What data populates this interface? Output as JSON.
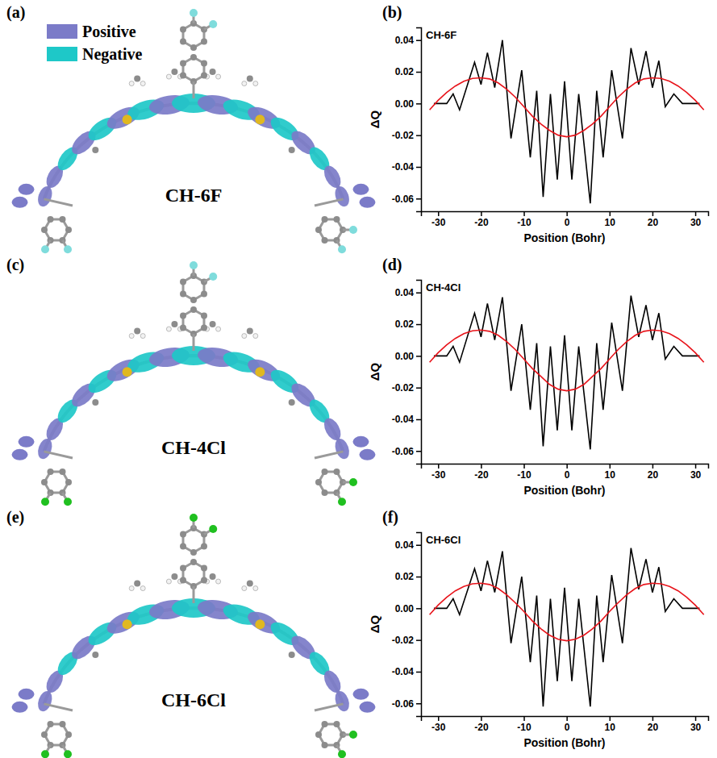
{
  "chart_data": [
    {
      "type": "line",
      "panel_label": "(b)",
      "title": "CH-6F",
      "x_label": "Position (Bohr)",
      "y_label": "ΔQ",
      "xlim": [
        -34,
        33
      ],
      "xticks": [
        -30,
        -20,
        -10,
        0,
        10,
        20,
        30
      ],
      "ylim": [
        -0.068,
        0.048
      ],
      "yticks": [
        -0.06,
        -0.04,
        -0.02,
        {
          "value": 0,
          "label": "0.00"
        },
        0.02,
        0.04
      ],
      "grid": false,
      "series": [
        {
          "color": "#000000",
          "line_style": "solid",
          "x": [
            -31,
            -28,
            -26.5,
            -25,
            -21.5,
            -20,
            -18.5,
            -16.8,
            -15,
            -13,
            -10.5,
            -8.5,
            -7,
            -5.5,
            -3.8,
            -2.2,
            -0.5,
            1.2,
            2.8,
            5.5,
            7,
            8.5,
            10.5,
            13,
            15,
            16.8,
            18.5,
            20,
            21.5,
            23,
            25,
            27,
            31
          ],
          "values": [
            0,
            0,
            0.006,
            -0.004,
            0.026,
            0.012,
            0.032,
            0.01,
            0.04,
            -0.022,
            0.021,
            -0.034,
            0.008,
            -0.059,
            0.006,
            -0.048,
            0.014,
            -0.048,
            0.006,
            -0.063,
            0.008,
            -0.034,
            0.021,
            -0.022,
            0.035,
            0.012,
            0.033,
            0.01,
            0.027,
            -0.002,
            0.006,
            0,
            0
          ]
        },
        {
          "color": "#e8141b",
          "line_style": "solid",
          "x": [
            -32,
            -30,
            -28,
            -26,
            -24,
            -22,
            -20,
            -18,
            -16,
            -14,
            -12,
            -10,
            -8,
            -6,
            -4,
            -2,
            0,
            2,
            4,
            6,
            8,
            10,
            12,
            14,
            16,
            18,
            20,
            22,
            24,
            26,
            28,
            30,
            32
          ],
          "values": [
            -0.004,
            0.002,
            0.007,
            0.011,
            0.014,
            0.0158,
            0.0162,
            0.0155,
            0.013,
            0.009,
            0.004,
            -0.002,
            -0.008,
            -0.013,
            -0.017,
            -0.02,
            -0.021,
            -0.02,
            -0.017,
            -0.013,
            -0.008,
            -0.002,
            0.004,
            0.009,
            0.013,
            0.0155,
            0.0162,
            0.0158,
            0.014,
            0.011,
            0.007,
            0.002,
            -0.004
          ]
        }
      ]
    },
    {
      "type": "line",
      "panel_label": "(d)",
      "title": "CH-4Cl",
      "x_label": "Position (Bohr)",
      "y_label": "ΔQ",
      "xlim": [
        -34,
        33
      ],
      "xticks": [
        -30,
        -20,
        -10,
        0,
        10,
        20,
        30
      ],
      "ylim": [
        -0.068,
        0.048
      ],
      "yticks": [
        -0.06,
        -0.04,
        -0.02,
        {
          "value": 0,
          "label": "0.00"
        },
        0.02,
        0.04
      ],
      "grid": false,
      "series": [
        {
          "color": "#000000",
          "line_style": "solid",
          "x": [
            -31,
            -28,
            -26.5,
            -25,
            -21.5,
            -20,
            -18.5,
            -16.8,
            -15,
            -13,
            -10.5,
            -8.5,
            -7,
            -5.5,
            -3.8,
            -2.2,
            -0.5,
            1.2,
            2.8,
            5.5,
            7,
            8.5,
            10.5,
            13,
            15,
            16.8,
            18.5,
            20,
            21.5,
            23,
            25,
            27,
            31
          ],
          "values": [
            0,
            0,
            0.006,
            -0.004,
            0.027,
            0.012,
            0.033,
            0.01,
            0.037,
            -0.022,
            0.02,
            -0.034,
            0.008,
            -0.057,
            0.006,
            -0.047,
            0.013,
            -0.047,
            0.006,
            -0.059,
            0.008,
            -0.034,
            0.021,
            -0.022,
            0.038,
            0.012,
            0.032,
            0.01,
            0.027,
            -0.002,
            0.006,
            0,
            0
          ]
        },
        {
          "color": "#e8141b",
          "line_style": "solid",
          "x": [
            -32,
            -30,
            -28,
            -26,
            -24,
            -22,
            -20,
            -18,
            -16,
            -14,
            -12,
            -10,
            -8,
            -6,
            -4,
            -2,
            0,
            2,
            4,
            6,
            8,
            10,
            12,
            14,
            16,
            18,
            20,
            22,
            24,
            26,
            28,
            30,
            32
          ],
          "values": [
            -0.004,
            0.002,
            0.007,
            0.011,
            0.014,
            0.0158,
            0.0163,
            0.0155,
            0.013,
            0.009,
            0.004,
            -0.002,
            -0.008,
            -0.013,
            -0.018,
            -0.021,
            -0.022,
            -0.021,
            -0.018,
            -0.013,
            -0.008,
            -0.002,
            0.004,
            0.009,
            0.013,
            0.0155,
            0.0163,
            0.0158,
            0.014,
            0.011,
            0.007,
            0.002,
            -0.004
          ]
        }
      ]
    },
    {
      "type": "line",
      "panel_label": "(f)",
      "title": "CH-6Cl",
      "x_label": "Position (Bohr)",
      "y_label": "ΔQ",
      "xlim": [
        -34,
        33
      ],
      "xticks": [
        -30,
        -20,
        -10,
        0,
        10,
        20,
        30
      ],
      "ylim": [
        -0.068,
        0.048
      ],
      "yticks": [
        -0.06,
        -0.04,
        -0.02,
        {
          "value": 0,
          "label": "0.00"
        },
        0.02,
        0.04
      ],
      "grid": false,
      "series": [
        {
          "color": "#000000",
          "line_style": "solid",
          "x": [
            -31,
            -28,
            -26.5,
            -25,
            -21.5,
            -20,
            -18.5,
            -16.8,
            -15,
            -13,
            -10.5,
            -8.5,
            -7,
            -5.5,
            -3.8,
            -2.2,
            -0.5,
            1.2,
            2.8,
            5.5,
            7,
            8.5,
            10.5,
            13,
            15,
            16.8,
            18.5,
            20,
            21.5,
            23,
            25,
            27,
            31
          ],
          "values": [
            0,
            0,
            0.006,
            -0.004,
            0.025,
            0.011,
            0.03,
            0.01,
            0.036,
            -0.022,
            0.02,
            -0.034,
            0.008,
            -0.062,
            0.006,
            -0.046,
            0.013,
            -0.046,
            0.006,
            -0.062,
            0.008,
            -0.034,
            0.021,
            -0.022,
            0.038,
            0.012,
            0.031,
            0.01,
            0.026,
            -0.002,
            0.006,
            0,
            0
          ]
        },
        {
          "color": "#e8141b",
          "line_style": "solid",
          "x": [
            -32,
            -30,
            -28,
            -26,
            -24,
            -22,
            -20,
            -18,
            -16,
            -14,
            -12,
            -10,
            -8,
            -6,
            -4,
            -2,
            0,
            2,
            4,
            6,
            8,
            10,
            12,
            14,
            16,
            18,
            20,
            22,
            24,
            26,
            28,
            30,
            32
          ],
          "values": [
            -0.004,
            0.002,
            0.007,
            0.011,
            0.0138,
            0.0154,
            0.0158,
            0.015,
            0.0125,
            0.0085,
            0.0035,
            -0.002,
            -0.008,
            -0.013,
            -0.017,
            -0.0195,
            -0.0205,
            -0.0195,
            -0.017,
            -0.013,
            -0.008,
            -0.002,
            0.0035,
            0.0085,
            0.0125,
            0.015,
            0.0158,
            0.0154,
            0.0138,
            0.011,
            0.007,
            0.002,
            -0.004
          ]
        }
      ]
    }
  ],
  "orbital_legend": [
    {
      "name": "Positive",
      "color": "#7b7bc8"
    },
    {
      "name": "Negative",
      "color": "#1ec8c8"
    }
  ],
  "molecules": [
    {
      "panel": "(a)",
      "label": "CH-6F",
      "top_halogen_color": "#7fdcdc",
      "end_halogen_color": "#7fdcdc"
    },
    {
      "panel": "(c)",
      "label": "CH-4Cl",
      "top_halogen_color": "#7fdcdc",
      "end_halogen_color": "#20c020"
    },
    {
      "panel": "(e)",
      "label": "CH-6Cl",
      "top_halogen_color": "#20c020",
      "end_halogen_color": "#20c020"
    }
  ]
}
